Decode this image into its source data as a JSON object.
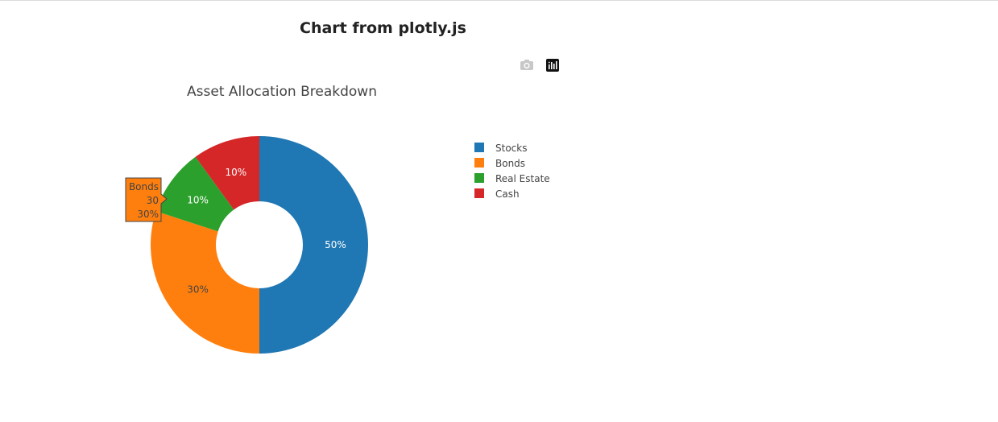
{
  "page": {
    "title": "Chart from plotly.js"
  },
  "modebar": {
    "buttons": [
      {
        "icon": "camera-icon"
      },
      {
        "icon": "plotly-logo-icon"
      }
    ]
  },
  "chart_data": {
    "type": "pie",
    "hole": 0.4,
    "title": "Asset Allocation Breakdown",
    "textinfo": "percent",
    "labels": [
      "Stocks",
      "Bonds",
      "Real Estate",
      "Cash"
    ],
    "values": [
      50,
      30,
      10,
      10
    ],
    "percent_labels": [
      "50%",
      "30%",
      "10%",
      "10%"
    ],
    "colors": [
      "#1f77b4",
      "#ff7f0e",
      "#2ca02c",
      "#d62728"
    ],
    "label_colors": [
      "#ffffff",
      "#444444",
      "#ffffff",
      "#ffffff"
    ],
    "direction": "clockwise",
    "legend_position": "right",
    "hover": {
      "label": "Bonds",
      "value": "30",
      "percent": "30%"
    }
  }
}
